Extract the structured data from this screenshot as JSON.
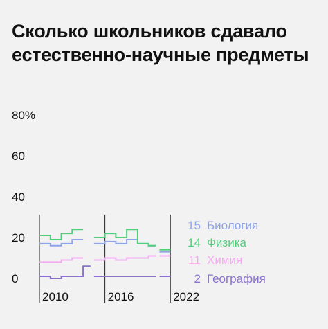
{
  "title": "Сколько школьников сдавало естественно-научные предметы",
  "chart_data": {
    "type": "line",
    "title": "Сколько школьников сдавало естественно-научные предметы",
    "ylim": [
      0,
      80
    ],
    "y_ticks": [
      "80%",
      "60",
      "40",
      "20",
      "0"
    ],
    "y_tick_values": [
      80,
      60,
      40,
      20,
      0
    ],
    "x_ticks": [
      "2010",
      "2016",
      "2022"
    ],
    "x_tick_values": [
      2009,
      2015,
      2021
    ],
    "xlim": [
      2009,
      2022
    ],
    "gaps_after": [
      2013,
      2019
    ],
    "legend_position": "right",
    "grid": false,
    "years": [
      2009,
      2010,
      2011,
      2012,
      2013,
      2014,
      2015,
      2016,
      2017,
      2018,
      2019,
      2020,
      2021
    ],
    "series": [
      {
        "name": "Биология",
        "legend_value": "15",
        "color": "#8fa3e8",
        "values": [
          17,
          16,
          17,
          19,
          null,
          17,
          18,
          17,
          19,
          17,
          16,
          13,
          null
        ]
      },
      {
        "name": "Физика",
        "legend_value": "14",
        "color": "#4fcf7a",
        "values": [
          21,
          19,
          22,
          24,
          null,
          20,
          22,
          20,
          24,
          17,
          16,
          14,
          null
        ]
      },
      {
        "name": "Химия",
        "legend_value": "11",
        "color": "#f4a9f0",
        "values": [
          8,
          8,
          9,
          10,
          null,
          9,
          10,
          9,
          10,
          10,
          11,
          11,
          null
        ]
      },
      {
        "name": "География",
        "legend_value": "2",
        "color": "#8a72cf",
        "values": [
          1,
          0,
          1,
          1,
          6,
          1,
          1,
          1,
          1,
          1,
          1,
          1,
          null
        ]
      }
    ]
  }
}
